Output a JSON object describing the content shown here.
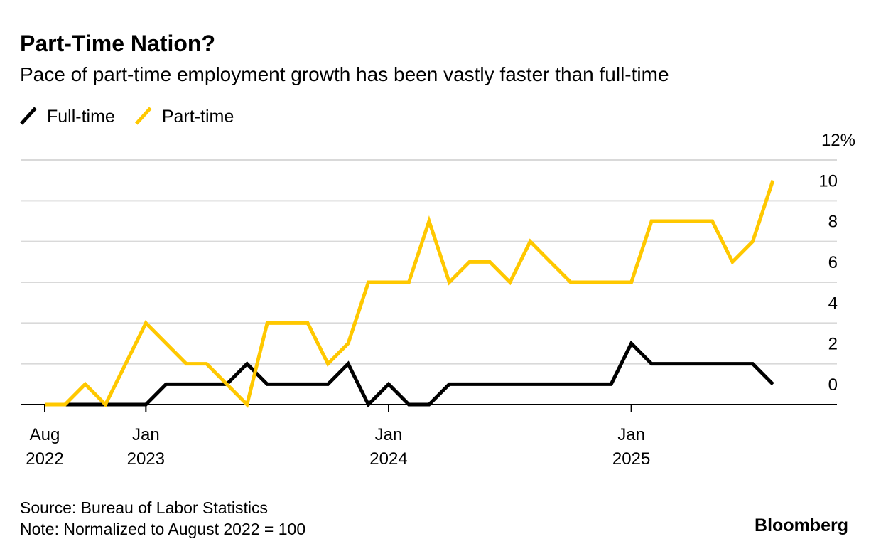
{
  "chart_data": {
    "type": "line",
    "title": "Part-Time Nation?",
    "subtitle": "Pace of part-time employment growth has been vastly faster than full-time",
    "x": [
      "2022-08",
      "2022-09",
      "2022-10",
      "2022-11",
      "2022-12",
      "2023-01",
      "2023-02",
      "2023-03",
      "2023-04",
      "2023-05",
      "2023-06",
      "2023-07",
      "2023-08",
      "2023-09",
      "2023-10",
      "2023-11",
      "2023-12",
      "2024-01",
      "2024-02",
      "2024-03",
      "2024-04",
      "2024-05",
      "2024-06",
      "2024-07",
      "2024-08",
      "2024-09",
      "2024-10",
      "2024-11",
      "2024-12",
      "2025-01",
      "2025-02",
      "2025-03",
      "2025-04",
      "2025-05",
      "2025-06",
      "2025-07",
      "2025-08"
    ],
    "series": [
      {
        "name": "Full-time",
        "color": "#000000",
        "values": [
          0,
          0,
          0,
          0,
          0,
          0,
          1,
          1,
          1,
          1,
          2,
          1,
          1,
          1,
          1,
          2,
          0,
          1,
          0,
          0,
          1,
          1,
          1,
          1,
          1,
          1,
          1,
          1,
          1,
          3,
          2,
          2,
          2,
          2,
          2,
          2,
          1
        ]
      },
      {
        "name": "Part-time",
        "color": "#ffc800",
        "values": [
          0,
          0,
          1,
          0,
          2,
          4,
          3,
          2,
          2,
          1,
          0,
          4,
          4,
          4,
          2,
          3,
          6,
          6,
          6,
          9,
          6,
          7,
          7,
          6,
          8,
          7,
          6,
          6,
          6,
          6,
          9,
          9,
          9,
          9,
          7,
          8,
          11
        ]
      }
    ],
    "xticks": [
      {
        "value": "2022-08",
        "label": "Aug 2022"
      },
      {
        "value": "2023-01",
        "label": "Jan 2023"
      },
      {
        "value": "2024-01",
        "label": "Jan 2024"
      },
      {
        "value": "2025-01",
        "label": "Jan 2025"
      }
    ],
    "ylim": [
      0,
      12
    ],
    "yticks": [
      0,
      2,
      4,
      6,
      8,
      10,
      {
        "value": 12,
        "label": "12%"
      }
    ],
    "grid": true,
    "legend": "top-left",
    "source": "Source: Bureau of Labor Statistics",
    "note": "Note: Normalized to August 2022 = 100",
    "brand": "Bloomberg"
  }
}
